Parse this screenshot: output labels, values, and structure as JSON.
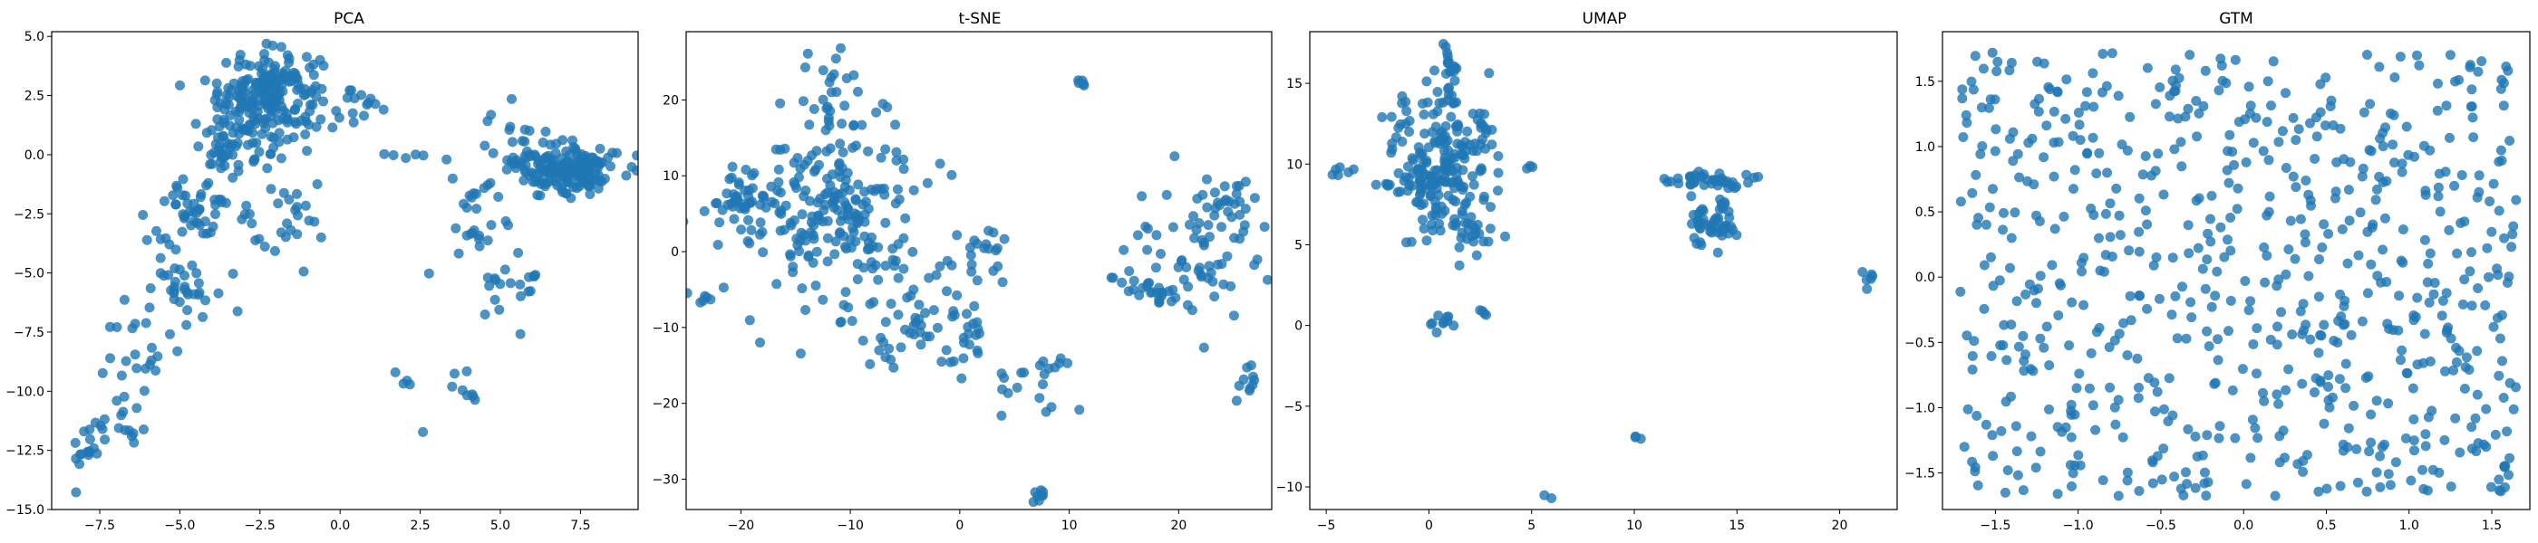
{
  "figure": {
    "background": "#ffffff",
    "marker_color": "#1f77b4",
    "marker_alpha": 0.8
  },
  "chart_data": [
    {
      "type": "scatter",
      "title": "PCA",
      "xlim": [
        -9.0,
        9.3
      ],
      "ylim": [
        -15.0,
        5.2
      ],
      "xticks": [
        -7.5,
        -5.0,
        -2.5,
        0.0,
        2.5,
        5.0,
        7.5
      ],
      "xticklabels": [
        "−7.5",
        "−5.0",
        "−2.5",
        "0.0",
        "2.5",
        "5.0",
        "7.5"
      ],
      "yticks": [
        5.0,
        2.5,
        0.0,
        -2.5,
        -5.0,
        -7.5,
        -10.0,
        -12.5,
        -15.0
      ],
      "yticklabels": [
        "5.0",
        "2.5",
        "0.0",
        "−2.5",
        "−5.0",
        "−7.5",
        "−10.0",
        "−12.5",
        "−15.0"
      ],
      "clusters": [
        {
          "cx": -2.2,
          "cy": 2.6,
          "sx": 0.8,
          "sy": 0.9,
          "n": 200
        },
        {
          "cx": -3.4,
          "cy": 0.4,
          "sx": 0.6,
          "sy": 0.6,
          "n": 60
        },
        {
          "cx": -4.2,
          "cy": -2.2,
          "sx": 0.6,
          "sy": 0.7,
          "n": 45
        },
        {
          "cx": -5.0,
          "cy": -5.0,
          "sx": 0.6,
          "sy": 0.9,
          "n": 40
        },
        {
          "cx": -6.2,
          "cy": -8.5,
          "sx": 0.6,
          "sy": 1.0,
          "n": 22
        },
        {
          "cx": -7.2,
          "cy": -11.5,
          "sx": 0.5,
          "sy": 0.5,
          "n": 18
        },
        {
          "cx": -7.9,
          "cy": -12.8,
          "sx": 0.3,
          "sy": 0.3,
          "n": 12
        },
        {
          "cx": -1.6,
          "cy": -3.0,
          "sx": 0.7,
          "sy": 1.0,
          "n": 25
        },
        {
          "cx": 7.1,
          "cy": -0.6,
          "sx": 0.8,
          "sy": 0.5,
          "n": 170
        },
        {
          "cx": 5.7,
          "cy": 0.4,
          "sx": 0.6,
          "sy": 0.7,
          "n": 30
        },
        {
          "cx": 4.4,
          "cy": -2.5,
          "sx": 0.5,
          "sy": 1.0,
          "n": 25
        },
        {
          "cx": 5.3,
          "cy": -5.5,
          "sx": 0.7,
          "sy": 1.0,
          "n": 20
        },
        {
          "cx": 4.0,
          "cy": -9.8,
          "sx": 0.4,
          "sy": 0.4,
          "n": 8
        },
        {
          "cx": 0.6,
          "cy": 1.8,
          "sx": 0.9,
          "sy": 0.6,
          "n": 15
        },
        {
          "cx": 2.2,
          "cy": 0.2,
          "sx": 0.6,
          "sy": 0.3,
          "n": 6
        },
        {
          "cx": 2.0,
          "cy": -9.4,
          "sx": 0.2,
          "sy": 0.2,
          "n": 4
        },
        {
          "cx": 2.8,
          "cy": -11.8,
          "sx": 0.1,
          "sy": 0.1,
          "n": 1
        },
        {
          "cx": 2.6,
          "cy": -5.0,
          "sx": 0.1,
          "sy": 0.1,
          "n": 1
        },
        {
          "cx": -8.4,
          "cy": -14.3,
          "sx": 0.1,
          "sy": 0.1,
          "n": 1
        }
      ]
    },
    {
      "type": "scatter",
      "title": "t-SNE",
      "xlim": [
        -25.0,
        28.5
      ],
      "ylim": [
        -34.0,
        29.0
      ],
      "xticks": [
        -20,
        -10,
        0,
        10,
        20
      ],
      "xticklabels": [
        "−20",
        "−10",
        "0",
        "10",
        "20"
      ],
      "yticks": [
        20,
        10,
        0,
        -10,
        -20,
        -30
      ],
      "yticklabels": [
        "20",
        "10",
        "0",
        "−10",
        "−20",
        "−30"
      ],
      "clusters": [
        {
          "cx": -12.0,
          "cy": 6.0,
          "sx": 4.0,
          "sy": 5.0,
          "n": 200
        },
        {
          "cx": -20.0,
          "cy": 7.0,
          "sx": 1.5,
          "sy": 2.0,
          "n": 35
        },
        {
          "cx": -12.0,
          "cy": 20.0,
          "sx": 2.0,
          "sy": 4.0,
          "n": 30
        },
        {
          "cx": -6.0,
          "cy": -8.0,
          "sx": 4.0,
          "sy": 4.0,
          "n": 60
        },
        {
          "cx": 0.0,
          "cy": -12.0,
          "sx": 1.5,
          "sy": 2.5,
          "n": 20
        },
        {
          "cx": 2.0,
          "cy": 0.0,
          "sx": 1.5,
          "sy": 2.0,
          "n": 20
        },
        {
          "cx": -22.5,
          "cy": -6.0,
          "sx": 1.0,
          "sy": 0.5,
          "n": 6
        },
        {
          "cx": 6.0,
          "cy": -18.0,
          "sx": 2.5,
          "sy": 1.5,
          "n": 15
        },
        {
          "cx": 9.0,
          "cy": -15.0,
          "sx": 1.0,
          "sy": 0.6,
          "n": 6
        },
        {
          "cx": 7.2,
          "cy": -32.0,
          "sx": 0.3,
          "sy": 0.4,
          "n": 8
        },
        {
          "cx": 11.2,
          "cy": 22.3,
          "sx": 0.2,
          "sy": 0.3,
          "n": 5
        },
        {
          "cx": 21.0,
          "cy": 0.0,
          "sx": 3.0,
          "sy": 4.0,
          "n": 60
        },
        {
          "cx": 24.0,
          "cy": 6.0,
          "sx": 1.5,
          "sy": 2.0,
          "n": 25
        },
        {
          "cx": 17.0,
          "cy": -5.0,
          "sx": 2.0,
          "sy": 1.0,
          "n": 20
        },
        {
          "cx": 26.0,
          "cy": -16.5,
          "sx": 0.6,
          "sy": 1.0,
          "n": 10
        }
      ]
    },
    {
      "type": "scatter",
      "title": "UMAP",
      "xlim": [
        -5.8,
        22.8
      ],
      "ylim": [
        -11.4,
        18.2
      ],
      "xticks": [
        -5,
        0,
        5,
        10,
        15,
        20
      ],
      "xticklabels": [
        "−5",
        "0",
        "5",
        "10",
        "15",
        "20"
      ],
      "yticks": [
        15,
        10,
        5,
        0,
        -5,
        -10
      ],
      "yticklabels": [
        "15",
        "10",
        "5",
        "0",
        "−5",
        "−10"
      ],
      "clusters": [
        {
          "cx": 0.5,
          "cy": 10.0,
          "sx": 1.3,
          "sy": 2.2,
          "n": 200
        },
        {
          "cx": 1.0,
          "cy": 15.5,
          "sx": 0.2,
          "sy": 1.0,
          "n": 20
        },
        {
          "cx": 2.5,
          "cy": 12.3,
          "sx": 0.2,
          "sy": 0.6,
          "n": 8
        },
        {
          "cx": -4.0,
          "cy": 9.5,
          "sx": 0.4,
          "sy": 0.2,
          "n": 6
        },
        {
          "cx": 2.0,
          "cy": 6.0,
          "sx": 0.8,
          "sy": 1.0,
          "n": 30
        },
        {
          "cx": 0.7,
          "cy": 0.3,
          "sx": 0.4,
          "sy": 0.5,
          "n": 10
        },
        {
          "cx": 2.6,
          "cy": 0.8,
          "sx": 0.2,
          "sy": 0.1,
          "n": 4
        },
        {
          "cx": 4.9,
          "cy": 9.8,
          "sx": 0.1,
          "sy": 0.1,
          "n": 3
        },
        {
          "cx": 13.8,
          "cy": 9.0,
          "sx": 1.0,
          "sy": 0.3,
          "n": 40
        },
        {
          "cx": 13.8,
          "cy": 6.2,
          "sx": 0.7,
          "sy": 0.8,
          "n": 50
        },
        {
          "cx": 21.5,
          "cy": 3.0,
          "sx": 0.2,
          "sy": 0.3,
          "n": 6
        },
        {
          "cx": 10.2,
          "cy": -7.0,
          "sx": 0.1,
          "sy": 0.1,
          "n": 3
        },
        {
          "cx": 5.8,
          "cy": -10.6,
          "sx": 0.1,
          "sy": 0.1,
          "n": 2
        }
      ]
    },
    {
      "type": "scatter",
      "title": "GTM",
      "xlim": [
        -1.82,
        1.73
      ],
      "ylim": [
        -1.78,
        1.88
      ],
      "xticks": [
        -1.5,
        -1.0,
        -0.5,
        0.0,
        0.5,
        1.0,
        1.5
      ],
      "xticklabels": [
        "−1.5",
        "−1.0",
        "−0.5",
        "0.0",
        "0.5",
        "1.0",
        "1.5"
      ],
      "yticks": [
        1.5,
        1.0,
        0.5,
        0.0,
        -0.5,
        -1.0,
        -1.5
      ],
      "yticklabels": [
        "1.5",
        "1.0",
        "0.5",
        "0.0",
        "−0.5",
        "−1.0",
        "−1.5"
      ],
      "uniform": {
        "xmin": -1.72,
        "xmax": 1.65,
        "ymin": -1.68,
        "ymax": 1.72,
        "n": 700
      }
    }
  ]
}
